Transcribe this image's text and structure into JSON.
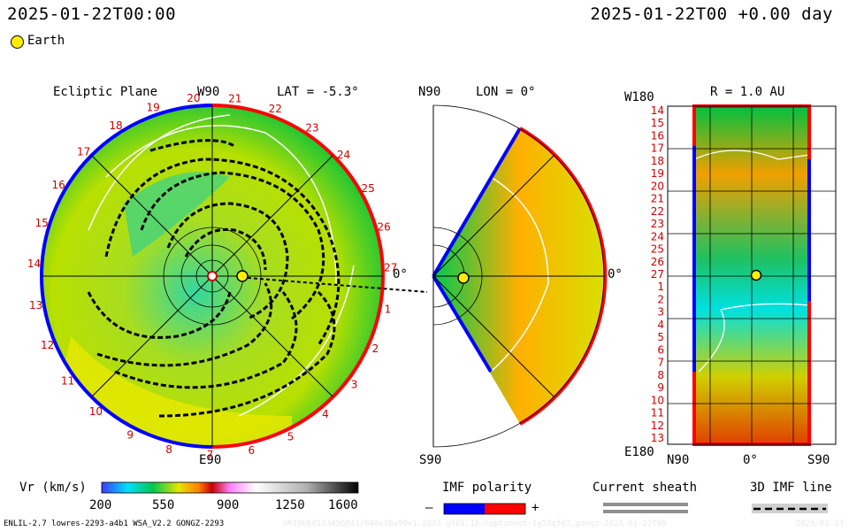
{
  "header": {
    "left_timestamp": "2025-01-22T00:00",
    "right_timestamp": "2025-01-22T00 +0.00 day",
    "legend_earth": "Earth"
  },
  "panels": {
    "ecliptic": {
      "title": "Ecliptic Plane",
      "top": "W90",
      "lat": "LAT = -5.3°",
      "bottom": "E90",
      "zero": "0°"
    },
    "meridional": {
      "top": "N90",
      "lon": "LON = 0°",
      "bottom": "S90",
      "zero": "0°"
    },
    "shell": {
      "r": "R = 1.0 AU",
      "top_left": "W180",
      "bottom_left": "E180",
      "x_left": "N90",
      "x_mid": "0°",
      "x_right": "S90",
      "rows": [
        "14",
        "15",
        "16",
        "17",
        "18",
        "19",
        "20",
        "21",
        "22",
        "23",
        "24",
        "25",
        "26",
        "27",
        "1",
        "2",
        "3",
        "4",
        "5",
        "6",
        "7",
        "8",
        "9",
        "10",
        "11",
        "12",
        "13"
      ]
    }
  },
  "colorbar": {
    "label": "Vr (km/s)",
    "ticks": [
      "200",
      "550",
      "900",
      "1250",
      "1600"
    ],
    "stops": [
      "#3a3aff",
      "#00e0ff",
      "#00c850",
      "#e6e600",
      "#ff7a00",
      "#c80000",
      "#ff80ff",
      "#ffffff",
      "#000000"
    ]
  },
  "legend": {
    "imf_title": "IMF polarity",
    "imf_minus": "–",
    "imf_plus": "+",
    "sheath_title": "Current sheath",
    "imf_line_title": "3D IMF line"
  },
  "footer": {
    "model": "ENLIL-2.7 lowres-2293-a4b1 WSA_V2.2 GONGZ-2293",
    "watermark": "UNIQUE0123456841/640x30x90x1.2233-g4b1.16-noptument-1g53q5d2.gongz-2025-01-22T00",
    "corner": "2025-01-23"
  },
  "sector_labels": [
    "20",
    "21",
    "22",
    "23",
    "24",
    "25",
    "26",
    "27",
    "1",
    "2",
    "3",
    "4",
    "5",
    "6",
    "7",
    "8",
    "9",
    "10",
    "11",
    "12",
    "13",
    "14",
    "15",
    "16",
    "17",
    "18",
    "19"
  ],
  "colors": {
    "pos_polarity": "#ff0000",
    "neg_polarity": "#0000ff",
    "earth": "#ffee00",
    "sector_text": "#cc0000"
  }
}
